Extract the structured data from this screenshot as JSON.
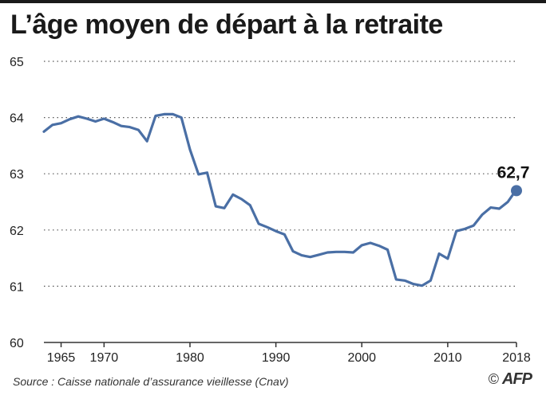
{
  "chart_data": {
    "type": "line",
    "title": "L’âge moyen de départ à la retraite",
    "xlabel": "",
    "ylabel": "",
    "xlim": [
      1963,
      2018
    ],
    "ylim": [
      60,
      65
    ],
    "x_ticks": [
      1965,
      1970,
      1980,
      1990,
      2000,
      2010,
      2018
    ],
    "y_ticks": [
      60,
      61,
      62,
      63,
      64,
      65
    ],
    "grid": "horizontal dotted",
    "line_color": "#4a6fa5",
    "series": [
      {
        "x": [
          1963,
          1964,
          1965,
          1966,
          1967,
          1968,
          1969,
          1970,
          1971,
          1972,
          1973,
          1974,
          1975,
          1976,
          1977,
          1978,
          1979,
          1980,
          1981,
          1982,
          1983,
          1984,
          1985,
          1986,
          1987,
          1988,
          1989,
          1990,
          1991,
          1992,
          1993,
          1994,
          1995,
          1996,
          1997,
          1998,
          1999,
          2000,
          2001,
          2002,
          2003,
          2004,
          2005,
          2006,
          2007,
          2008,
          2009,
          2010,
          2011,
          2012,
          2013,
          2014,
          2015,
          2016,
          2017,
          2018
        ],
        "values": [
          63.75,
          63.87,
          63.9,
          63.97,
          64.02,
          63.98,
          63.93,
          63.98,
          63.92,
          63.85,
          63.83,
          63.78,
          63.58,
          64.03,
          64.06,
          64.06,
          64.0,
          63.43,
          62.99,
          63.02,
          62.42,
          62.39,
          62.63,
          62.55,
          62.44,
          62.11,
          62.05,
          61.98,
          61.92,
          61.62,
          61.55,
          61.52,
          61.56,
          61.6,
          61.61,
          61.61,
          61.6,
          61.73,
          61.77,
          61.72,
          61.65,
          61.12,
          61.1,
          61.04,
          61.01,
          61.1,
          61.58,
          61.49,
          61.98,
          62.02,
          62.08,
          62.27,
          62.4,
          62.38,
          62.5,
          62.72
        ]
      }
    ],
    "annotation": {
      "x": 2018,
      "y": 62.7,
      "label": "62,7"
    }
  },
  "footer": {
    "source": "Source : Caisse nationale d’assurance vieillesse (Cnav)",
    "copyright": "©",
    "agency": "AFP"
  }
}
